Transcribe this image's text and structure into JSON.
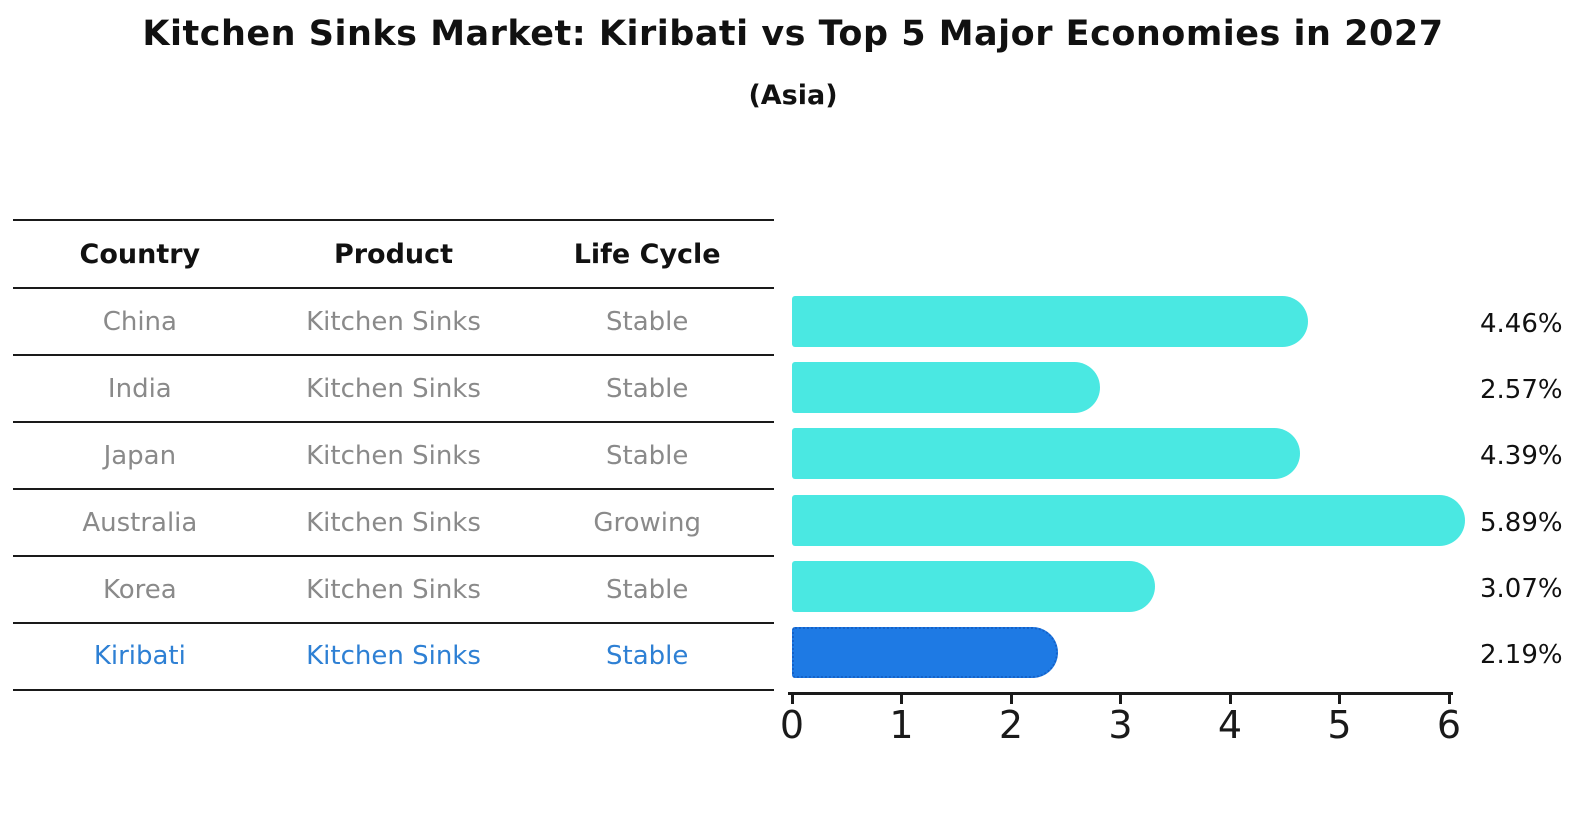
{
  "title": "Kitchen Sinks Market: Kiribati vs Top 5 Major Economies in 2027",
  "subtitle": "(Asia)",
  "table": {
    "headers": {
      "country": "Country",
      "product": "Product",
      "life_cycle": "Life Cycle"
    },
    "rows": [
      {
        "country": "China",
        "product": "Kitchen Sinks",
        "life_cycle": "Stable"
      },
      {
        "country": "India",
        "product": "Kitchen Sinks",
        "life_cycle": "Stable"
      },
      {
        "country": "Japan",
        "product": "Kitchen Sinks",
        "life_cycle": "Stable"
      },
      {
        "country": "Australia",
        "product": "Kitchen Sinks",
        "life_cycle": "Growing"
      },
      {
        "country": "Korea",
        "product": "Kitchen Sinks",
        "life_cycle": "Stable"
      },
      {
        "country": "Kiribati",
        "product": "Kitchen Sinks",
        "life_cycle": "Stable"
      }
    ]
  },
  "chart_data": {
    "type": "bar",
    "orientation": "horizontal",
    "title": "Kitchen Sinks Market: Kiribati vs Top 5 Major Economies in 2027",
    "subtitle": "(Asia)",
    "categories": [
      "China",
      "India",
      "Japan",
      "Australia",
      "Korea",
      "Kiribati"
    ],
    "values": [
      4.46,
      2.57,
      4.39,
      5.89,
      3.07,
      2.19
    ],
    "value_labels": [
      "4.46%",
      "2.57%",
      "4.39%",
      "5.89%",
      "3.07%",
      "2.19%"
    ],
    "xlim": [
      0,
      6
    ],
    "x_ticks": [
      "0",
      "1",
      "2",
      "3",
      "4",
      "5",
      "6"
    ],
    "grid": false,
    "legend": false,
    "highlight_index": 5
  },
  "colors": {
    "bar": "#4ae8e2",
    "highlight_bar": "#1e7ae4",
    "highlight_border": "#1461c8",
    "highlight_text": "#2e80d4",
    "row_text": "#8a8a8a",
    "header_text": "#111111",
    "line": "#1a1a1a"
  }
}
